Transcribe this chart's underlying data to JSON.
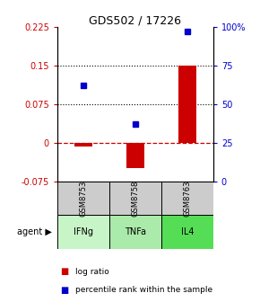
{
  "title": "GDS502 / 17226",
  "samples": [
    "GSM8753",
    "GSM8758",
    "GSM8763"
  ],
  "agents": [
    "IFNg",
    "TNFa",
    "IL4"
  ],
  "log_ratios": [
    -0.008,
    -0.05,
    0.15
  ],
  "percentile_ranks": [
    62,
    37,
    97
  ],
  "ylim_left": [
    -0.075,
    0.225
  ],
  "ylim_right": [
    0,
    100
  ],
  "yticks_left": [
    -0.075,
    0,
    0.075,
    0.15,
    0.225
  ],
  "yticks_right": [
    0,
    25,
    50,
    75,
    100
  ],
  "right_tick_labels": [
    "0",
    "25",
    "50",
    "75",
    "100%"
  ],
  "hlines_dotted": [
    0.075,
    0.15
  ],
  "hline_dashed": 0,
  "bar_color": "#cc0000",
  "dot_color": "#0000cc",
  "agent_colors": [
    "#c8f5c8",
    "#aaeaaa",
    "#55dd55"
  ],
  "sample_bg": "#cccccc",
  "legend_bar_label": "log ratio",
  "legend_dot_label": "percentile rank within the sample",
  "bar_width": 0.35
}
